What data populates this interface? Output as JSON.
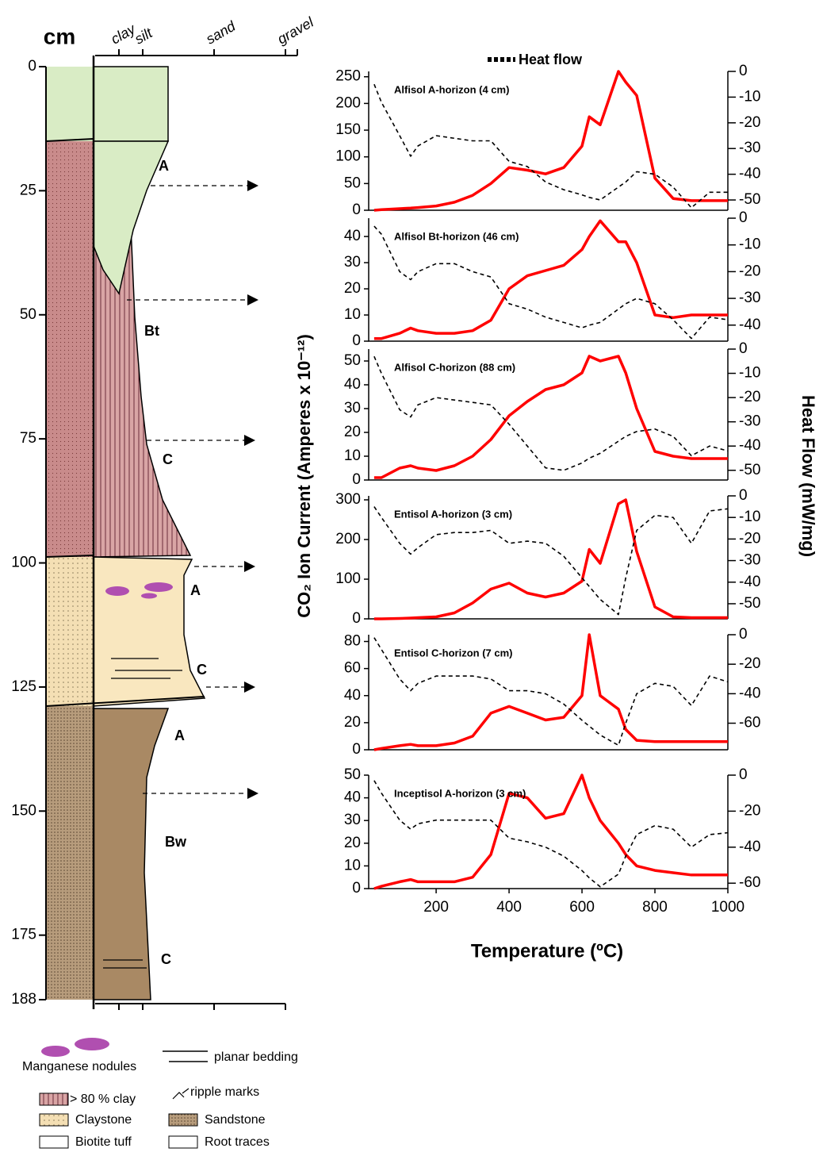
{
  "figure": {
    "xlabel": "Temperature (ºC)",
    "ylabel": "CO₂ Ion Current (Amperes x 10⁻¹²)",
    "y2label": "Heat Flow (mW/mg)",
    "legend": "Heat flow"
  },
  "column": {
    "ylabel": "cm",
    "ylim": [
      0,
      188
    ],
    "yticks": [
      0,
      25,
      50,
      75,
      100,
      125,
      150,
      175,
      188
    ],
    "grain_sizes": [
      "clay",
      "silt",
      "sand",
      "gravel"
    ],
    "horizons": [
      "A",
      "Bt",
      "C",
      "A",
      "C",
      "A",
      "Bw",
      "C"
    ],
    "legend": [
      "Manganese nodules",
      "planar bedding",
      "ripple marks",
      "> 80 % clay",
      "Claystone",
      "Sandstone",
      "Biotite tuff",
      "Root traces"
    ]
  },
  "chart_data": [
    {
      "type": "line",
      "title": "Alfisol A-horizon (4 cm)",
      "x": [
        30,
        50,
        100,
        130,
        150,
        200,
        250,
        300,
        350,
        400,
        450,
        500,
        550,
        600,
        620,
        650,
        700,
        720,
        750,
        800,
        850,
        900,
        950,
        1000
      ],
      "xlim": [
        15,
        1000
      ],
      "ylim": [
        0,
        260
      ],
      "yticks": [
        0,
        50,
        100,
        150,
        200,
        250
      ],
      "y2lim": [
        -54,
        0
      ],
      "y2ticks": [
        0,
        -10,
        -20,
        -30,
        -40,
        -50
      ],
      "series": [
        {
          "color": "#ff0000",
          "values": [
            0,
            1,
            3,
            4,
            5,
            8,
            15,
            28,
            50,
            80,
            75,
            68,
            80,
            120,
            175,
            160,
            260,
            240,
            215,
            60,
            22,
            18,
            18,
            18
          ]
        },
        {
          "color": "#000000",
          "axis": "y2",
          "values": [
            -5,
            -12,
            -25,
            -33,
            -29,
            -25,
            -26,
            -27,
            -27,
            -35,
            -37,
            -43,
            -46,
            -48,
            -49,
            -50,
            -45,
            -43,
            -39,
            -40,
            -45,
            -53,
            -47,
            -47
          ]
        }
      ]
    },
    {
      "type": "line",
      "title": "Alfisol Bt-horizon (46 cm)",
      "x": [
        30,
        50,
        100,
        130,
        150,
        200,
        250,
        300,
        350,
        400,
        450,
        500,
        550,
        600,
        620,
        650,
        700,
        720,
        750,
        800,
        850,
        900,
        950,
        1000
      ],
      "xlim": [
        15,
        1000
      ],
      "ylim": [
        0,
        47
      ],
      "yticks": [
        0,
        10,
        20,
        30,
        40
      ],
      "y2lim": [
        -46,
        0
      ],
      "y2ticks": [
        0,
        -10,
        -20,
        -30,
        -40
      ],
      "series": [
        {
          "color": "#ff0000",
          "values": [
            1,
            1,
            3,
            5,
            4,
            3,
            3,
            4,
            8,
            20,
            25,
            27,
            29,
            35,
            40,
            46,
            38,
            38,
            30,
            10,
            9,
            10,
            10,
            10
          ]
        },
        {
          "color": "#000000",
          "axis": "y2",
          "values": [
            -3,
            -6,
            -20,
            -23,
            -20,
            -17,
            -17,
            -20,
            -22,
            -32,
            -34,
            -37,
            -39,
            -41,
            -40,
            -39,
            -34,
            -32,
            -30,
            -32,
            -38,
            -45,
            -37,
            -38
          ]
        }
      ]
    },
    {
      "type": "line",
      "title": "Alfisol C-horizon (88 cm)",
      "x": [
        30,
        50,
        100,
        130,
        150,
        200,
        250,
        300,
        350,
        400,
        450,
        500,
        550,
        600,
        620,
        650,
        700,
        720,
        750,
        800,
        850,
        900,
        950,
        1000
      ],
      "xlim": [
        15,
        1000
      ],
      "ylim": [
        0,
        55
      ],
      "yticks": [
        0,
        10,
        20,
        30,
        40,
        50
      ],
      "y2lim": [
        -54,
        0
      ],
      "y2ticks": [
        0,
        -10,
        -20,
        -30,
        -40,
        -50
      ],
      "series": [
        {
          "color": "#ff0000",
          "values": [
            1,
            1,
            5,
            6,
            5,
            4,
            6,
            10,
            17,
            27,
            33,
            38,
            40,
            45,
            52,
            50,
            52,
            45,
            30,
            12,
            10,
            9,
            9,
            9
          ]
        },
        {
          "color": "#000000",
          "axis": "y2",
          "values": [
            -3,
            -10,
            -25,
            -28,
            -23,
            -20,
            -21,
            -22,
            -23,
            -31,
            -40,
            -49,
            -50,
            -47,
            -45,
            -43,
            -38,
            -36,
            -34,
            -33,
            -36,
            -44,
            -40,
            -42
          ]
        }
      ]
    },
    {
      "type": "line",
      "title": "Entisol A-horizon (3 cm)",
      "x": [
        30,
        50,
        100,
        130,
        150,
        200,
        250,
        300,
        350,
        400,
        450,
        500,
        550,
        600,
        620,
        650,
        700,
        720,
        750,
        800,
        850,
        900,
        950,
        1000
      ],
      "xlim": [
        15,
        1000
      ],
      "ylim": [
        0,
        310
      ],
      "yticks": [
        0,
        100,
        200,
        300
      ],
      "y2lim": [
        -57,
        0
      ],
      "y2ticks": [
        0,
        -10,
        -20,
        -30,
        -40,
        -50
      ],
      "series": [
        {
          "color": "#ff0000",
          "values": [
            0,
            0,
            1,
            2,
            3,
            5,
            15,
            40,
            75,
            90,
            65,
            55,
            65,
            95,
            175,
            140,
            290,
            300,
            170,
            30,
            5,
            3,
            3,
            3
          ]
        },
        {
          "color": "#000000",
          "axis": "y2",
          "values": [
            -5,
            -10,
            -22,
            -27,
            -24,
            -18,
            -17,
            -17,
            -16,
            -22,
            -21,
            -22,
            -28,
            -38,
            -42,
            -48,
            -55,
            -38,
            -16,
            -9,
            -10,
            -22,
            -7,
            -6
          ]
        }
      ]
    },
    {
      "type": "line",
      "title": "Entisol C-horizon (7 cm)",
      "x": [
        30,
        50,
        100,
        130,
        150,
        200,
        250,
        300,
        350,
        400,
        450,
        500,
        550,
        600,
        620,
        650,
        700,
        720,
        750,
        800,
        850,
        900,
        950,
        1000
      ],
      "xlim": [
        15,
        1000
      ],
      "ylim": [
        0,
        85
      ],
      "yticks": [
        0,
        20,
        40,
        60,
        80
      ],
      "y2lim": [
        -78,
        0
      ],
      "y2ticks": [
        0,
        -20,
        -40,
        -60
      ],
      "series": [
        {
          "color": "#ff0000",
          "values": [
            0,
            1,
            3,
            4,
            3,
            3,
            5,
            10,
            27,
            32,
            27,
            22,
            24,
            40,
            85,
            40,
            30,
            15,
            7,
            6,
            6,
            6,
            6,
            6
          ]
        },
        {
          "color": "#000000",
          "axis": "y2",
          "values": [
            -2,
            -10,
            -30,
            -38,
            -33,
            -28,
            -28,
            -28,
            -30,
            -38,
            -38,
            -40,
            -47,
            -58,
            -62,
            -68,
            -75,
            -60,
            -40,
            -33,
            -35,
            -48,
            -28,
            -32
          ]
        }
      ]
    },
    {
      "type": "line",
      "title": "Inceptisol A-horizon (3 cm)",
      "x": [
        30,
        50,
        100,
        130,
        150,
        200,
        250,
        300,
        350,
        400,
        450,
        500,
        550,
        600,
        620,
        650,
        700,
        720,
        750,
        800,
        850,
        900,
        950,
        1000
      ],
      "xlim": [
        15,
        1000
      ],
      "xticks": [
        200,
        400,
        600,
        800,
        1000
      ],
      "ylim": [
        0,
        50
      ],
      "yticks": [
        0,
        10,
        20,
        30,
        40,
        50
      ],
      "y2lim": [
        -63,
        0
      ],
      "y2ticks": [
        0,
        -20,
        -40,
        -60
      ],
      "series": [
        {
          "color": "#ff0000",
          "values": [
            0,
            1,
            3,
            4,
            3,
            3,
            3,
            5,
            15,
            42,
            40,
            31,
            33,
            50,
            40,
            30,
            20,
            15,
            10,
            8,
            7,
            6,
            6,
            6
          ]
        },
        {
          "color": "#000000",
          "axis": "y2",
          "values": [
            -3,
            -10,
            -25,
            -30,
            -27,
            -25,
            -25,
            -25,
            -25,
            -35,
            -37,
            -40,
            -45,
            -53,
            -57,
            -62,
            -55,
            -45,
            -33,
            -28,
            -30,
            -40,
            -33,
            -32
          ]
        }
      ]
    }
  ]
}
